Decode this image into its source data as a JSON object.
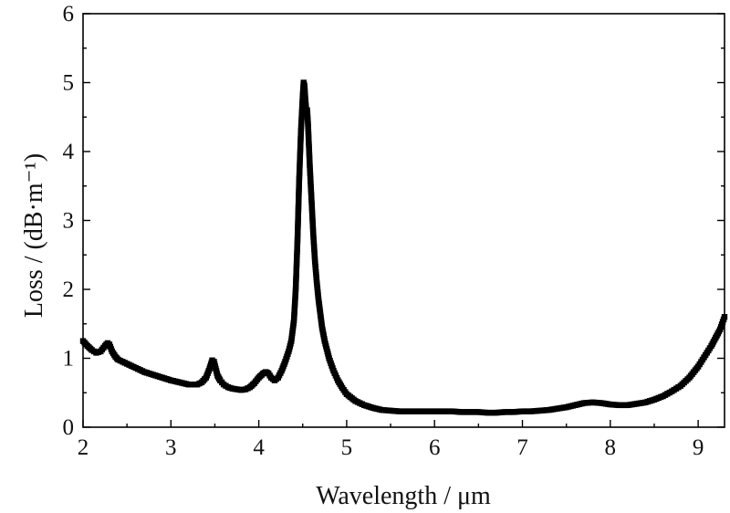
{
  "chart_data": {
    "type": "scatter",
    "xlabel": "Wavelength / μm",
    "ylabel": "Loss / (dB·m⁻¹)",
    "xlim": [
      2,
      9.3
    ],
    "ylim": [
      0,
      6
    ],
    "xticks": [
      2,
      3,
      4,
      5,
      6,
      7,
      8,
      9
    ],
    "yticks": [
      0,
      1,
      2,
      3,
      4,
      5,
      6
    ],
    "grid": false,
    "marker_color": "#000000",
    "series": [
      {
        "x": [
          2.0,
          2.05,
          2.1,
          2.15,
          2.2,
          2.25,
          2.28,
          2.3,
          2.33,
          2.37,
          2.4,
          2.5,
          2.6,
          2.7,
          2.8,
          2.9,
          3.0,
          3.1,
          3.2,
          3.3,
          3.35,
          3.4,
          3.44,
          3.47,
          3.49,
          3.51,
          3.53,
          3.56,
          3.6,
          3.65,
          3.7,
          3.75,
          3.8,
          3.85,
          3.9,
          3.95,
          4.0,
          4.05,
          4.08,
          4.11,
          4.14,
          4.18,
          4.22,
          4.26,
          4.3,
          4.34,
          4.37,
          4.4,
          4.42,
          4.44,
          4.46,
          4.48,
          4.5,
          4.51,
          4.52,
          4.53,
          4.54,
          4.55,
          4.56,
          4.57,
          4.58,
          4.6,
          4.62,
          4.64,
          4.66,
          4.68,
          4.7,
          4.72,
          4.75,
          4.78,
          4.8,
          4.85,
          4.9,
          4.95,
          5.0,
          5.1,
          5.2,
          5.3,
          5.4,
          5.5,
          5.6,
          5.7,
          5.8,
          5.9,
          6.0,
          6.1,
          6.2,
          6.3,
          6.4,
          6.5,
          6.6,
          6.7,
          6.8,
          6.9,
          7.0,
          7.1,
          7.2,
          7.3,
          7.4,
          7.5,
          7.6,
          7.7,
          7.8,
          7.9,
          8.0,
          8.1,
          8.2,
          8.3,
          8.4,
          8.5,
          8.6,
          8.7,
          8.8,
          8.9,
          9.0,
          9.05,
          9.1,
          9.15,
          9.2,
          9.25,
          9.3
        ],
        "y": [
          1.25,
          1.18,
          1.12,
          1.08,
          1.1,
          1.18,
          1.22,
          1.2,
          1.1,
          1.02,
          0.98,
          0.92,
          0.86,
          0.8,
          0.76,
          0.72,
          0.68,
          0.65,
          0.62,
          0.62,
          0.65,
          0.72,
          0.85,
          0.97,
          0.95,
          0.85,
          0.75,
          0.68,
          0.62,
          0.58,
          0.56,
          0.55,
          0.54,
          0.55,
          0.58,
          0.64,
          0.72,
          0.78,
          0.8,
          0.78,
          0.72,
          0.68,
          0.72,
          0.82,
          0.95,
          1.1,
          1.25,
          1.55,
          2.0,
          2.7,
          3.6,
          4.3,
          4.8,
          5.0,
          4.95,
          4.75,
          4.6,
          4.6,
          4.4,
          4.1,
          3.8,
          3.3,
          2.8,
          2.4,
          2.1,
          1.85,
          1.65,
          1.45,
          1.25,
          1.1,
          1.0,
          0.82,
          0.68,
          0.57,
          0.48,
          0.38,
          0.32,
          0.28,
          0.25,
          0.24,
          0.23,
          0.23,
          0.23,
          0.23,
          0.23,
          0.23,
          0.23,
          0.22,
          0.22,
          0.22,
          0.21,
          0.21,
          0.22,
          0.22,
          0.23,
          0.23,
          0.24,
          0.25,
          0.27,
          0.29,
          0.32,
          0.35,
          0.36,
          0.35,
          0.33,
          0.32,
          0.32,
          0.34,
          0.36,
          0.4,
          0.45,
          0.52,
          0.6,
          0.72,
          0.88,
          0.98,
          1.08,
          1.18,
          1.3,
          1.42,
          1.6
        ]
      }
    ]
  }
}
